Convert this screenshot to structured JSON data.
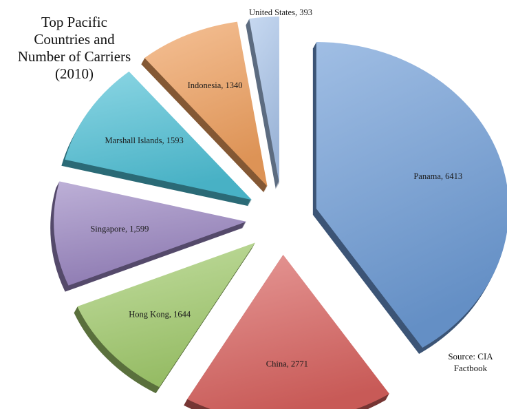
{
  "chart_data": {
    "type": "pie",
    "title_lines": [
      "Top Pacific",
      "Countries and",
      "Number of Carriers",
      "(2010)"
    ],
    "slices": [
      {
        "label": "Panama, 6413",
        "name": "Panama",
        "value": 6413,
        "color": "#6d9bd6"
      },
      {
        "label": "China, 2771",
        "name": "China",
        "value": 2771,
        "color": "#d9625f"
      },
      {
        "label": "Hong Kong, 1644",
        "name": "Hong Kong",
        "value": 1644,
        "color": "#a3cc6e"
      },
      {
        "label": "Singapore, 1,599",
        "name": "Singapore",
        "value": 1599,
        "color": "#9a86c2"
      },
      {
        "label": "Marshall Islands, 1593",
        "name": "Marshall Islands",
        "value": 1593,
        "color": "#4ec0d6"
      },
      {
        "label": "Indonesia, 1340",
        "name": "Indonesia",
        "value": 1340,
        "color": "#f0a05e"
      },
      {
        "label": "United States, 393",
        "name": "United States",
        "value": 393,
        "color": "#a9c4ea"
      }
    ],
    "start_direction": "top, clockwise",
    "exploded": true
  },
  "source_lines": [
    "Source: CIA",
    "Factbook"
  ]
}
